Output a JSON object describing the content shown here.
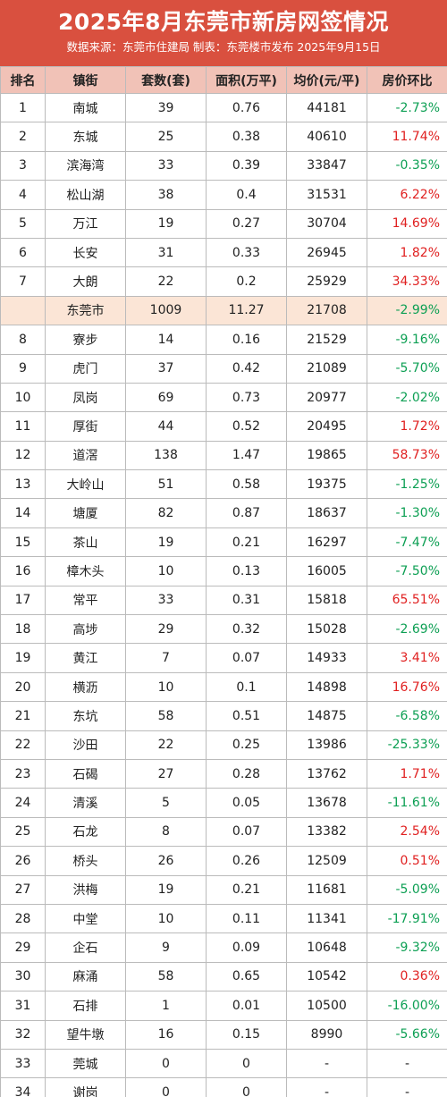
{
  "header": {
    "title": "2025年8月东莞市新房网签情况",
    "subtitle": "数据来源：东莞市住建局  制表：东莞楼市发布  2025年9月15日"
  },
  "table": {
    "columns": [
      "排名",
      "镇街",
      "套数(套)",
      "面积(万平)",
      "均价(元/平)",
      "房价环比"
    ],
    "rows": [
      {
        "rank": "1",
        "town": "南城",
        "units": "39",
        "area": "0.76",
        "price": "44181",
        "change": "-2.73%",
        "dir": "down"
      },
      {
        "rank": "2",
        "town": "东城",
        "units": "25",
        "area": "0.38",
        "price": "40610",
        "change": "11.74%",
        "dir": "up"
      },
      {
        "rank": "3",
        "town": "滨海湾",
        "units": "33",
        "area": "0.39",
        "price": "33847",
        "change": "-0.35%",
        "dir": "down"
      },
      {
        "rank": "4",
        "town": "松山湖",
        "units": "38",
        "area": "0.4",
        "price": "31531",
        "change": "6.22%",
        "dir": "up"
      },
      {
        "rank": "5",
        "town": "万江",
        "units": "19",
        "area": "0.27",
        "price": "30704",
        "change": "14.69%",
        "dir": "up"
      },
      {
        "rank": "6",
        "town": "长安",
        "units": "31",
        "area": "0.33",
        "price": "26945",
        "change": "1.82%",
        "dir": "up"
      },
      {
        "rank": "7",
        "town": "大朗",
        "units": "22",
        "area": "0.2",
        "price": "25929",
        "change": "34.33%",
        "dir": "up"
      },
      {
        "rank": "",
        "town": "东莞市",
        "units": "1009",
        "area": "11.27",
        "price": "21708",
        "change": "-2.99%",
        "dir": "down",
        "total": true
      },
      {
        "rank": "8",
        "town": "寮步",
        "units": "14",
        "area": "0.16",
        "price": "21529",
        "change": "-9.16%",
        "dir": "down"
      },
      {
        "rank": "9",
        "town": "虎门",
        "units": "37",
        "area": "0.42",
        "price": "21089",
        "change": "-5.70%",
        "dir": "down"
      },
      {
        "rank": "10",
        "town": "凤岗",
        "units": "69",
        "area": "0.73",
        "price": "20977",
        "change": "-2.02%",
        "dir": "down"
      },
      {
        "rank": "11",
        "town": "厚街",
        "units": "44",
        "area": "0.52",
        "price": "20495",
        "change": "1.72%",
        "dir": "up"
      },
      {
        "rank": "12",
        "town": "道滘",
        "units": "138",
        "area": "1.47",
        "price": "19865",
        "change": "58.73%",
        "dir": "up"
      },
      {
        "rank": "13",
        "town": "大岭山",
        "units": "51",
        "area": "0.58",
        "price": "19375",
        "change": "-1.25%",
        "dir": "down"
      },
      {
        "rank": "14",
        "town": "塘厦",
        "units": "82",
        "area": "0.87",
        "price": "18637",
        "change": "-1.30%",
        "dir": "down"
      },
      {
        "rank": "15",
        "town": "茶山",
        "units": "19",
        "area": "0.21",
        "price": "16297",
        "change": "-7.47%",
        "dir": "down"
      },
      {
        "rank": "16",
        "town": "樟木头",
        "units": "10",
        "area": "0.13",
        "price": "16005",
        "change": "-7.50%",
        "dir": "down"
      },
      {
        "rank": "17",
        "town": "常平",
        "units": "33",
        "area": "0.31",
        "price": "15818",
        "change": "65.51%",
        "dir": "up"
      },
      {
        "rank": "18",
        "town": "高埗",
        "units": "29",
        "area": "0.32",
        "price": "15028",
        "change": "-2.69%",
        "dir": "down"
      },
      {
        "rank": "19",
        "town": "黄江",
        "units": "7",
        "area": "0.07",
        "price": "14933",
        "change": "3.41%",
        "dir": "up"
      },
      {
        "rank": "20",
        "town": "横沥",
        "units": "10",
        "area": "0.1",
        "price": "14898",
        "change": "16.76%",
        "dir": "up"
      },
      {
        "rank": "21",
        "town": "东坑",
        "units": "58",
        "area": "0.51",
        "price": "14875",
        "change": "-6.58%",
        "dir": "down"
      },
      {
        "rank": "22",
        "town": "沙田",
        "units": "22",
        "area": "0.25",
        "price": "13986",
        "change": "-25.33%",
        "dir": "down"
      },
      {
        "rank": "23",
        "town": "石碣",
        "units": "27",
        "area": "0.28",
        "price": "13762",
        "change": "1.71%",
        "dir": "up"
      },
      {
        "rank": "24",
        "town": "清溪",
        "units": "5",
        "area": "0.05",
        "price": "13678",
        "change": "-11.61%",
        "dir": "down"
      },
      {
        "rank": "25",
        "town": "石龙",
        "units": "8",
        "area": "0.07",
        "price": "13382",
        "change": "2.54%",
        "dir": "up"
      },
      {
        "rank": "26",
        "town": "桥头",
        "units": "26",
        "area": "0.26",
        "price": "12509",
        "change": "0.51%",
        "dir": "up"
      },
      {
        "rank": "27",
        "town": "洪梅",
        "units": "19",
        "area": "0.21",
        "price": "11681",
        "change": "-5.09%",
        "dir": "down"
      },
      {
        "rank": "28",
        "town": "中堂",
        "units": "10",
        "area": "0.11",
        "price": "11341",
        "change": "-17.91%",
        "dir": "down"
      },
      {
        "rank": "29",
        "town": "企石",
        "units": "9",
        "area": "0.09",
        "price": "10648",
        "change": "-9.32%",
        "dir": "down"
      },
      {
        "rank": "30",
        "town": "麻涌",
        "units": "58",
        "area": "0.65",
        "price": "10542",
        "change": "0.36%",
        "dir": "up"
      },
      {
        "rank": "31",
        "town": "石排",
        "units": "1",
        "area": "0.01",
        "price": "10500",
        "change": "-16.00%",
        "dir": "down"
      },
      {
        "rank": "32",
        "town": "望牛墩",
        "units": "16",
        "area": "0.15",
        "price": "8990",
        "change": "-5.66%",
        "dir": "down"
      },
      {
        "rank": "33",
        "town": "莞城",
        "units": "0",
        "area": "0",
        "price": "-",
        "change": "-",
        "dir": "none"
      },
      {
        "rank": "34",
        "town": "谢岗",
        "units": "0",
        "area": "0",
        "price": "-",
        "change": "-",
        "dir": "none"
      }
    ]
  },
  "colors": {
    "header_bg": "#d9503f",
    "column_header_bg": "#f1c2b7",
    "total_row_bg": "#fbe5d6",
    "up": "#e02020",
    "down": "#0c9f53"
  }
}
